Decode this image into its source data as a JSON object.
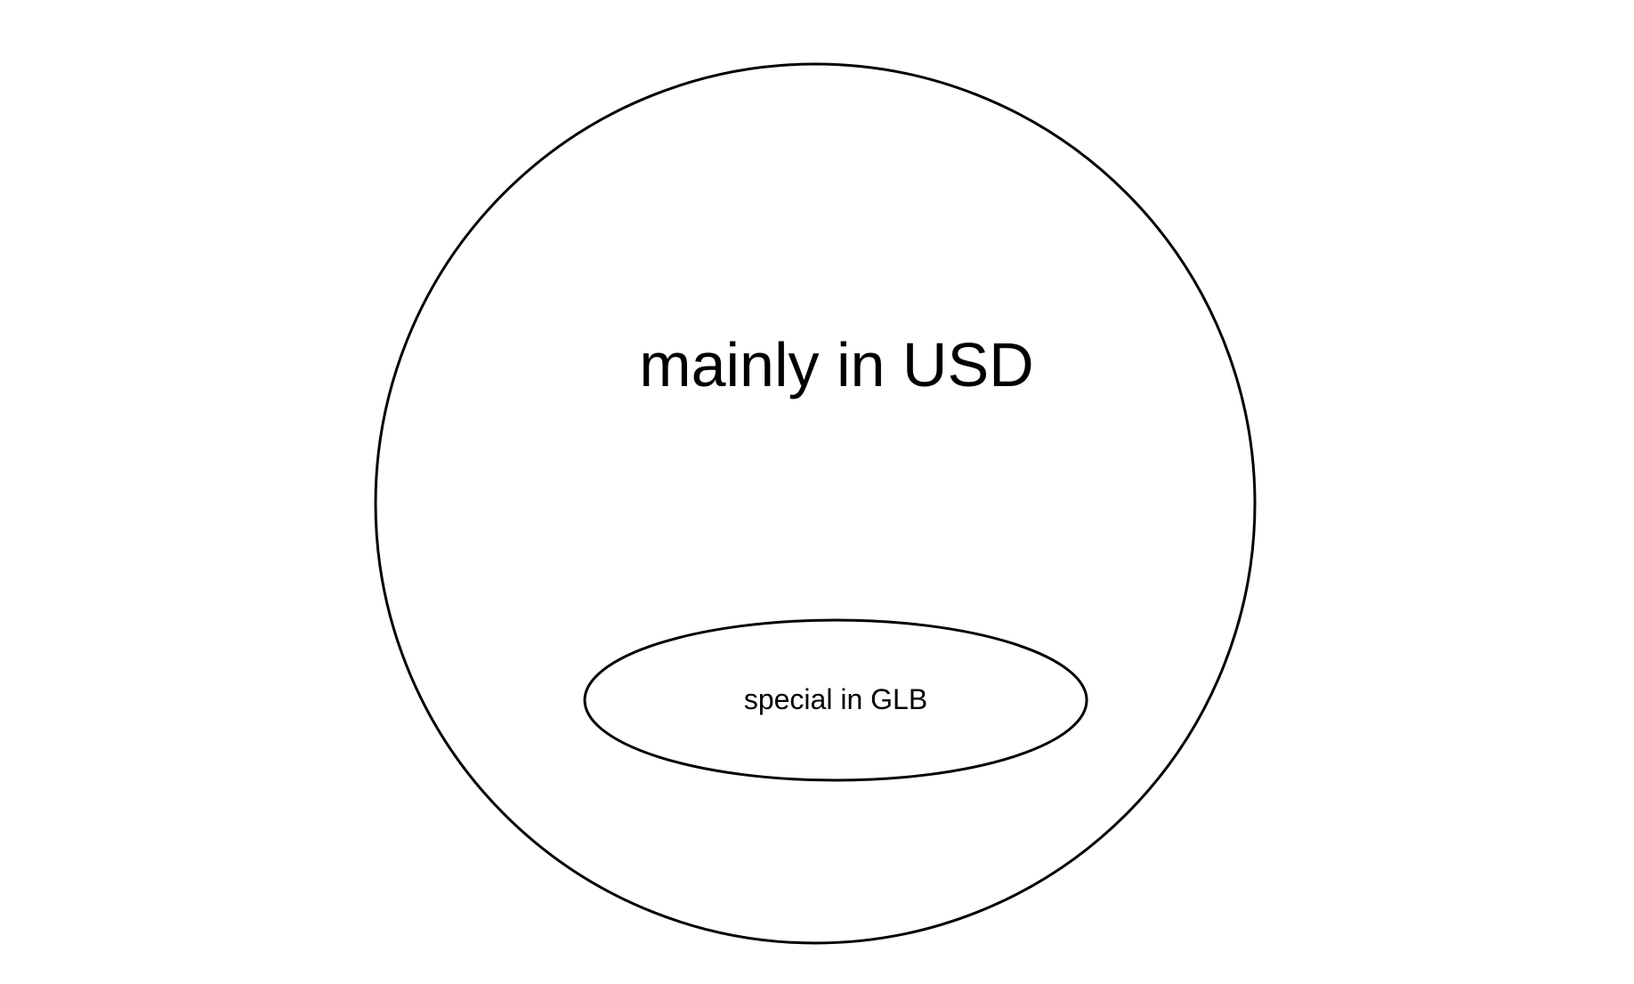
{
  "diagram": {
    "outer": {
      "label": "mainly in USD"
    },
    "inner": {
      "label": "special in GLB"
    }
  }
}
